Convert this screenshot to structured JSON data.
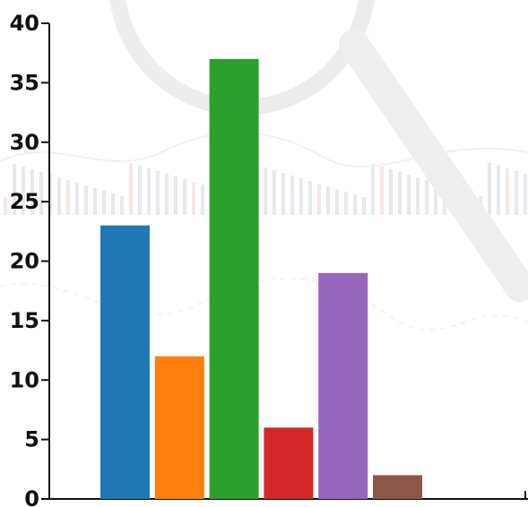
{
  "chart_data": {
    "type": "bar",
    "title": "",
    "xlabel": "",
    "ylabel": "",
    "ylim": [
      0,
      40
    ],
    "yticks": [
      0,
      5,
      10,
      15,
      20,
      25,
      30,
      35,
      40
    ],
    "grid": false,
    "legend": "none",
    "values": [
      23,
      12,
      37,
      6,
      19,
      2
    ],
    "colors": [
      "#1f77b4",
      "#ff7f0e",
      "#2ca02c",
      "#d62728",
      "#9467bd",
      "#8c564b"
    ],
    "background": "faded photo of a magnifying glass over stock-market charts"
  }
}
